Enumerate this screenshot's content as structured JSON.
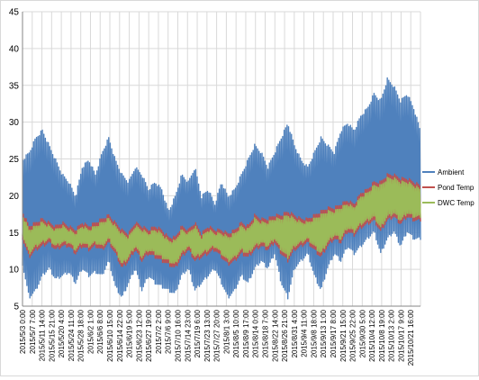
{
  "chart_data": {
    "type": "line",
    "title": "",
    "xlabel": "",
    "ylabel": "",
    "ylim": [
      5,
      45
    ],
    "yticks": [
      5,
      10,
      15,
      20,
      25,
      30,
      35,
      40,
      45
    ],
    "grid": true,
    "legend_position": "right",
    "x_tick_labels": [
      "2015/5/3 0:00",
      "2015/5/7 7:00",
      "2015/5/11 14:00",
      "2015/5/15 21:00",
      "2015/5/20 4:00",
      "2015/5/24 11:00",
      "2015/5/28 18:00",
      "2015/6/2 1:00",
      "2015/6/6 8:00",
      "2015/6/10 15:00",
      "2015/6/14 22:00",
      "2015/6/19 5:00",
      "2015/6/23 12:00",
      "2015/6/27 19:00",
      "2015/7/2 2:00",
      "2015/7/6 9:00",
      "2015/7/10 16:00",
      "2015/7/14 23:00",
      "2015/7/19 6:00",
      "2015/7/23 13:00",
      "2015/7/27 20:00",
      "2015/8/1 3:00",
      "2015/8/5 10:00",
      "2015/8/9 17:00",
      "2015/8/14 0:00",
      "2015/8/18 7:00",
      "2015/8/22 14:00",
      "2015/8/26 21:00",
      "2015/8/31 4:00",
      "2015/9/4 11:00",
      "2015/9/8 18:00",
      "2015/9/13 1:00",
      "2015/9/17 8:00",
      "2015/9/21 15:00",
      "2015/9/25 22:00",
      "2015/9/30 5:00",
      "2015/10/4 12:00",
      "2015/10/8 19:00",
      "2015/10/13 2:00",
      "2015/10/17 9:00",
      "2015/10/21 16:00"
    ],
    "series": [
      {
        "name": "Ambient",
        "color": "#4f81bd",
        "low": [
          10.5,
          6,
          7,
          9,
          10,
          8.5,
          9,
          9.5,
          8,
          10,
          9,
          9.5,
          9,
          11,
          7.5,
          6,
          8,
          10,
          7,
          9,
          8,
          7.5,
          7,
          6.5,
          9,
          10,
          7,
          8,
          9,
          10,
          8,
          6,
          7,
          9,
          8,
          10,
          11,
          10,
          12,
          8,
          6,
          10,
          11,
          12,
          9,
          7,
          10,
          12,
          11,
          13,
          12,
          13,
          14,
          15,
          12,
          14,
          15,
          13,
          15,
          14,
          14
        ],
        "high": [
          25,
          26,
          28,
          29,
          27,
          25,
          23,
          22,
          20,
          24,
          25,
          23,
          26,
          28,
          25,
          23,
          22,
          24,
          23,
          21,
          22,
          21,
          18,
          20,
          23,
          22,
          24,
          20,
          21,
          19,
          22,
          20,
          21,
          23,
          25,
          27,
          26,
          24,
          26,
          28,
          30,
          27,
          25,
          24,
          26,
          28,
          27,
          26,
          29,
          30,
          29,
          31,
          32,
          34,
          33,
          36,
          35,
          33,
          34,
          32,
          29
        ]
      },
      {
        "name": "Pond Temp",
        "color": "#c0504d",
        "low": [
          14,
          11.5,
          12.5,
          13,
          13.5,
          12.5,
          13,
          13,
          12,
          13,
          12.5,
          13,
          12.5,
          13.5,
          12,
          10,
          11,
          12.5,
          11,
          12,
          11.5,
          11,
          10.5,
          10,
          11.5,
          12.5,
          11,
          11.5,
          12,
          12.5,
          11.5,
          10.5,
          11,
          12,
          11.5,
          12.5,
          13,
          12.5,
          13.5,
          12,
          11,
          12.5,
          13,
          13.5,
          12.5,
          11.5,
          13,
          14,
          13.5,
          15,
          14.5,
          15.5,
          16,
          16.5,
          15,
          16.5,
          17,
          16,
          17,
          16.5,
          16.5
        ],
        "high": [
          18,
          16,
          16.5,
          17,
          16.5,
          16,
          16.5,
          16,
          15.5,
          16.5,
          16,
          16.5,
          17,
          17.5,
          16.5,
          15.5,
          15,
          16.5,
          16,
          15.5,
          16,
          15.5,
          14.5,
          14.5,
          16,
          15.5,
          16.5,
          15,
          16,
          15.5,
          15.5,
          15,
          15.5,
          16.5,
          16,
          17.5,
          17,
          17,
          17.5,
          17.5,
          18,
          17.5,
          17,
          17,
          17.5,
          18,
          18.5,
          18.5,
          19,
          19.5,
          19,
          20.5,
          21,
          22,
          22,
          23,
          23,
          22.5,
          22.5,
          22,
          21.5
        ]
      },
      {
        "name": "DWC Temp",
        "color": "#9bbb59",
        "low": [
          14.5,
          12,
          13,
          13.5,
          14,
          13,
          13.5,
          13.5,
          12.5,
          13.5,
          13,
          13.5,
          13,
          14,
          12.5,
          10.5,
          11.5,
          13,
          11.5,
          12.5,
          12,
          11.5,
          11,
          10.5,
          12,
          13,
          11.5,
          12,
          12.5,
          13,
          12,
          11,
          11.5,
          12.5,
          12,
          13,
          13.5,
          13,
          14,
          12.5,
          11.5,
          13,
          13.5,
          14,
          13,
          12,
          13.5,
          14.5,
          14,
          15.5,
          15,
          16,
          16.5,
          17,
          15.5,
          17,
          17.5,
          16.5,
          17.5,
          17,
          17
        ],
        "high": [
          17.5,
          15.5,
          16,
          16.5,
          16,
          15.5,
          16,
          15.5,
          15,
          16,
          15.5,
          16,
          16.5,
          17,
          16,
          15,
          14.5,
          16,
          15.5,
          15,
          15.5,
          15,
          14,
          14,
          15.5,
          15,
          16,
          14.5,
          15.5,
          15,
          15,
          14.5,
          15,
          16,
          15.5,
          17,
          16.5,
          16.5,
          17,
          17,
          17.5,
          17,
          16.5,
          16.5,
          17,
          17.5,
          18,
          18,
          18.5,
          19,
          18.5,
          20,
          20.5,
          21.5,
          21.5,
          22.5,
          22.5,
          22,
          22,
          21.5,
          21
        ]
      }
    ]
  }
}
